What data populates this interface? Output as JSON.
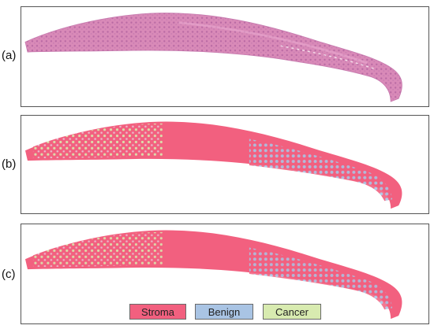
{
  "panels": [
    {
      "label": "(a)",
      "overlay": "none"
    },
    {
      "label": "(b)",
      "overlay": "segmentation"
    },
    {
      "label": "(c)",
      "overlay": "segmentation"
    }
  ],
  "legend": [
    {
      "label": "Stroma",
      "color": "#f2607f"
    },
    {
      "label": "Benign",
      "color": "#a9c4e4"
    },
    {
      "label": "Cancer",
      "color": "#d8ebb0"
    }
  ],
  "colors": {
    "tissue_he": "#d98ab8",
    "tissue_dark": "#b96aa4",
    "stroma": "#f2607f",
    "benign": "#a9c4e4",
    "cancer": "#d8ebb0"
  }
}
